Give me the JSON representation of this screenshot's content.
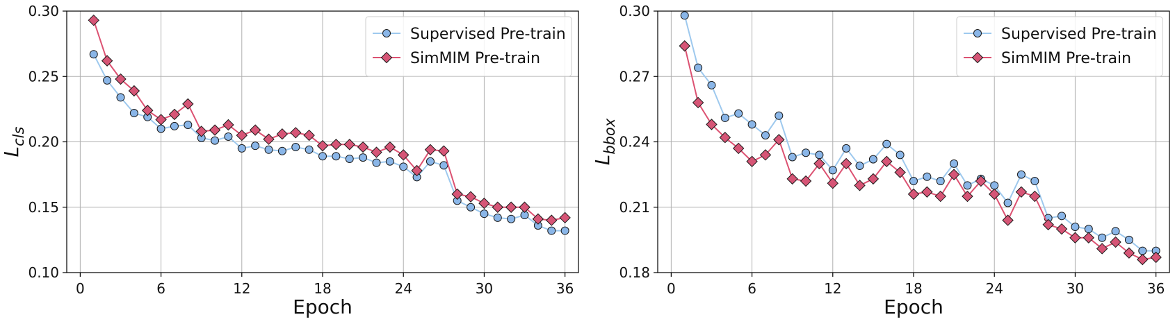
{
  "chart_data": [
    {
      "type": "line",
      "xlabel": "Epoch",
      "ylabel_main": "L",
      "ylabel_sub": "cls",
      "xlim": [
        -1,
        37
      ],
      "ylim": [
        0.1,
        0.3
      ],
      "xticks": [
        0,
        6,
        12,
        18,
        24,
        30,
        36
      ],
      "yticks": [
        0.1,
        0.15,
        0.2,
        0.25,
        0.3
      ],
      "ytick_labels": [
        "0.10",
        "0.15",
        "0.20",
        "0.25",
        "0.30"
      ],
      "grid": true,
      "legend_position": "top-right",
      "x": [
        1,
        2,
        3,
        4,
        5,
        6,
        7,
        8,
        9,
        10,
        11,
        12,
        13,
        14,
        15,
        16,
        17,
        18,
        19,
        20,
        21,
        22,
        23,
        24,
        25,
        26,
        27,
        28,
        29,
        30,
        31,
        32,
        33,
        34,
        35,
        36
      ],
      "series": [
        {
          "name": "Supervised Pre-train",
          "marker": "circle",
          "line_color": "#9ec9ee",
          "marker_color": "#8ab6e8",
          "values": [
            0.267,
            0.247,
            0.234,
            0.222,
            0.219,
            0.21,
            0.212,
            0.213,
            0.203,
            0.201,
            0.204,
            0.195,
            0.197,
            0.194,
            0.193,
            0.196,
            0.194,
            0.189,
            0.189,
            0.187,
            0.188,
            0.184,
            0.185,
            0.181,
            0.173,
            0.185,
            0.182,
            0.155,
            0.15,
            0.145,
            0.142,
            0.141,
            0.144,
            0.136,
            0.132,
            0.132
          ]
        },
        {
          "name": "SimMIM Pre-train",
          "marker": "diamond",
          "line_color": "#dc5272",
          "marker_color": "#d65576",
          "values": [
            0.293,
            0.262,
            0.248,
            0.239,
            0.224,
            0.217,
            0.221,
            0.229,
            0.208,
            0.209,
            0.213,
            0.205,
            0.209,
            0.202,
            0.206,
            0.207,
            0.205,
            0.197,
            0.198,
            0.198,
            0.196,
            0.192,
            0.196,
            0.19,
            0.178,
            0.194,
            0.193,
            0.16,
            0.158,
            0.153,
            0.15,
            0.15,
            0.15,
            0.141,
            0.14,
            0.142
          ]
        }
      ]
    },
    {
      "type": "line",
      "xlabel": "Epoch",
      "ylabel_main": "L",
      "ylabel_sub": "bbox",
      "xlim": [
        -1,
        37
      ],
      "ylim": [
        0.18,
        0.3
      ],
      "xticks": [
        0,
        6,
        12,
        18,
        24,
        30,
        36
      ],
      "yticks": [
        0.18,
        0.21,
        0.24,
        0.27,
        0.3
      ],
      "ytick_labels": [
        "0.18",
        "0.21",
        "0.24",
        "0.27",
        "0.30"
      ],
      "grid": true,
      "legend_position": "top-right",
      "x": [
        1,
        2,
        3,
        4,
        5,
        6,
        7,
        8,
        9,
        10,
        11,
        12,
        13,
        14,
        15,
        16,
        17,
        18,
        19,
        20,
        21,
        22,
        23,
        24,
        25,
        26,
        27,
        28,
        29,
        30,
        31,
        32,
        33,
        34,
        35,
        36
      ],
      "series": [
        {
          "name": "Supervised Pre-train",
          "marker": "circle",
          "line_color": "#9ec9ee",
          "marker_color": "#8ab6e8",
          "values": [
            0.298,
            0.274,
            0.266,
            0.251,
            0.253,
            0.248,
            0.243,
            0.252,
            0.233,
            0.235,
            0.234,
            0.227,
            0.237,
            0.229,
            0.232,
            0.239,
            0.234,
            0.222,
            0.224,
            0.222,
            0.23,
            0.22,
            0.223,
            0.22,
            0.212,
            0.225,
            0.222,
            0.205,
            0.206,
            0.201,
            0.2,
            0.196,
            0.199,
            0.195,
            0.19,
            0.19
          ]
        },
        {
          "name": "SimMIM Pre-train",
          "marker": "diamond",
          "line_color": "#dc5272",
          "marker_color": "#d65576",
          "values": [
            0.284,
            0.258,
            0.248,
            0.242,
            0.237,
            0.231,
            0.234,
            0.241,
            0.223,
            0.222,
            0.23,
            0.221,
            0.23,
            0.22,
            0.223,
            0.231,
            0.226,
            0.216,
            0.217,
            0.215,
            0.225,
            0.215,
            0.222,
            0.216,
            0.204,
            0.217,
            0.215,
            0.202,
            0.2,
            0.196,
            0.196,
            0.191,
            0.194,
            0.189,
            0.186,
            0.187
          ]
        }
      ]
    }
  ]
}
